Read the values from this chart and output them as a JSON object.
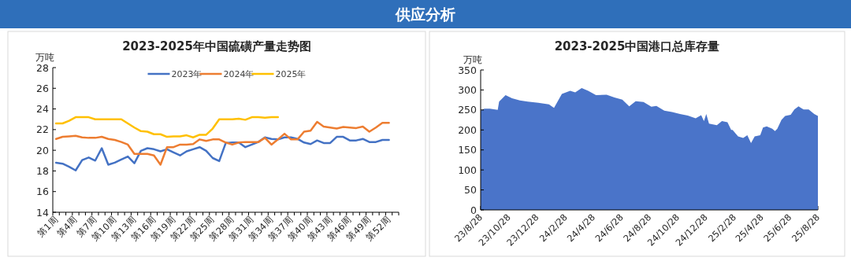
{
  "chart_data": [
    {
      "type": "other",
      "title": "供应分析"
    },
    {
      "type": "line",
      "title": "2023-2025年中国硫磺产量走势图",
      "ylabel": "万吨",
      "legend": "top",
      "grid": false,
      "marker": "none",
      "line_style": "solid",
      "categories": [
        "第1周",
        null,
        null,
        "第4周",
        null,
        null,
        "第7周",
        null,
        null,
        "第10周",
        null,
        null,
        "第13周",
        null,
        null,
        "第16周",
        null,
        null,
        "第19周",
        null,
        null,
        "第22周",
        null,
        null,
        "第25周",
        null,
        null,
        "第28周",
        null,
        null,
        "第31周",
        null,
        null,
        "第34周",
        null,
        null,
        "第37周",
        null,
        null,
        "第40周",
        null,
        null,
        "第43周",
        null,
        null,
        "第46周",
        null,
        null,
        "第49周",
        null,
        null,
        "第52周",
        null
      ],
      "ylim": [
        14,
        28
      ],
      "yticks": [
        14,
        16,
        18,
        20,
        22,
        24,
        26,
        28
      ],
      "series": [
        {
          "name": "2023年",
          "color": "#4472c4",
          "values": [
            18.8,
            18.7,
            18.4,
            18.05,
            19.05,
            19.3,
            19.0,
            20.2,
            18.6,
            18.8,
            19.1,
            19.4,
            18.75,
            19.95,
            20.2,
            20.1,
            19.9,
            20.1,
            19.8,
            19.5,
            19.9,
            20.1,
            20.3,
            19.95,
            19.25,
            18.95,
            20.7,
            20.75,
            20.75,
            20.3,
            20.55,
            20.8,
            21.25,
            21.1,
            21.05,
            21.25,
            21.25,
            21.1,
            20.75,
            20.6,
            20.95,
            20.7,
            20.7,
            21.3,
            21.3,
            20.95,
            20.95,
            21.1,
            20.8,
            20.8,
            21.0,
            21.0,
            null
          ]
        },
        {
          "name": "2024年",
          "color": "#ed7d31",
          "values": [
            21.1,
            21.3,
            21.35,
            21.4,
            21.25,
            21.2,
            21.2,
            21.3,
            21.1,
            21.0,
            20.8,
            20.55,
            19.65,
            19.65,
            19.65,
            19.5,
            18.6,
            20.3,
            20.3,
            20.55,
            20.55,
            20.6,
            21.05,
            20.9,
            21.05,
            21.05,
            20.75,
            20.55,
            20.75,
            20.8,
            20.8,
            20.8,
            21.2,
            20.55,
            21.05,
            21.6,
            21.05,
            21.05,
            21.8,
            21.9,
            22.75,
            22.3,
            22.2,
            22.1,
            22.25,
            22.2,
            22.15,
            22.3,
            21.8,
            22.2,
            22.65,
            22.65,
            null
          ]
        },
        {
          "name": "2025年",
          "color": "#ffc000",
          "values": [
            22.6,
            22.6,
            22.85,
            23.2,
            23.2,
            23.2,
            23.0,
            23.0,
            23.0,
            23.0,
            23.0,
            22.6,
            22.2,
            21.85,
            21.8,
            21.55,
            21.55,
            21.3,
            21.35,
            21.35,
            21.45,
            21.25,
            21.5,
            21.5,
            22.1,
            23.0,
            23.0,
            23.0,
            23.05,
            22.95,
            23.2,
            23.2,
            23.15,
            23.2,
            23.2,
            null,
            null,
            null,
            null,
            null,
            null,
            null,
            null,
            null,
            null,
            null,
            null,
            null,
            null,
            null,
            null,
            null,
            null
          ]
        }
      ]
    },
    {
      "type": "area",
      "title": "2023-2025中国港口总库存量",
      "ylabel": "万吨",
      "grid": false,
      "x": [
        "2023-08-28",
        "2023-09-05",
        "2023-09-17",
        "2023-10-04",
        "2023-10-07",
        "2023-10-21",
        "2023-11-04",
        "2023-11-21",
        "2023-12-08",
        "2023-12-31",
        "2024-01-23",
        "2024-02-03",
        "2024-02-20",
        "2024-03-09",
        "2024-03-20",
        "2024-04-03",
        "2024-04-17",
        "2024-05-04",
        "2024-05-27",
        "2024-06-13",
        "2024-06-30",
        "2024-07-15",
        "2024-07-29",
        "2024-08-15",
        "2024-09-01",
        "2024-09-12",
        "2024-09-29",
        "2024-10-16",
        "2024-11-02",
        "2024-11-19",
        "2024-12-06",
        "2024-12-18",
        "2024-12-24",
        "2024-12-29",
        "2025-01-04",
        "2025-01-21",
        "2025-02-01",
        "2025-02-13",
        "2025-02-21",
        "2025-02-24",
        "2025-03-08",
        "2025-03-19",
        "2025-03-28",
        "2025-04-05",
        "2025-04-13",
        "2025-04-25",
        "2025-05-01",
        "2025-05-09",
        "2025-05-21",
        "2025-05-27",
        "2025-06-01",
        "2025-06-10",
        "2025-06-18",
        "2025-06-30",
        "2025-07-08",
        "2025-07-17",
        "2025-07-28",
        "2025-08-08",
        "2025-08-20",
        "2025-08-28"
      ],
      "series": [
        {
          "color": "#4a74c9",
          "values": [
            248,
            253,
            253,
            250,
            271,
            287,
            279,
            274,
            271,
            268,
            264,
            255,
            290,
            298,
            294,
            305,
            298,
            287,
            288,
            281,
            276,
            259,
            272,
            270,
            258,
            260,
            248,
            245,
            240,
            236,
            229,
            237,
            222,
            240,
            216,
            212,
            222,
            219,
            200,
            200,
            184,
            180,
            187,
            167,
            184,
            187,
            206,
            209,
            203,
            197,
            203,
            225,
            235,
            238,
            251,
            259,
            251,
            251,
            240,
            235
          ]
        }
      ],
      "xlim": [
        "2023-08-28",
        "2025-08-28"
      ],
      "xticks": [
        {
          "value": "2023-08-28",
          "label": "23/8/28"
        },
        {
          "value": "2023-10-28",
          "label": "23/10/28"
        },
        {
          "value": "2023-12-28",
          "label": "23/12/28"
        },
        {
          "value": "2024-02-28",
          "label": "24/2/28"
        },
        {
          "value": "2024-04-28",
          "label": "24/4/28"
        },
        {
          "value": "2024-06-28",
          "label": "24/6/28"
        },
        {
          "value": "2024-08-28",
          "label": "24/8/28"
        },
        {
          "value": "2024-10-28",
          "label": "24/10/28"
        },
        {
          "value": "2024-12-28",
          "label": "24/12/28"
        },
        {
          "value": "2025-02-28",
          "label": "25/2/28"
        },
        {
          "value": "2025-04-28",
          "label": "25/4/28"
        },
        {
          "value": "2025-06-28",
          "label": "25/6/28"
        },
        {
          "value": "2025-08-28",
          "label": "25/8/28"
        }
      ],
      "ylim": [
        0,
        350
      ],
      "yticks": [
        0,
        50,
        100,
        150,
        200,
        250,
        300,
        350
      ]
    }
  ]
}
